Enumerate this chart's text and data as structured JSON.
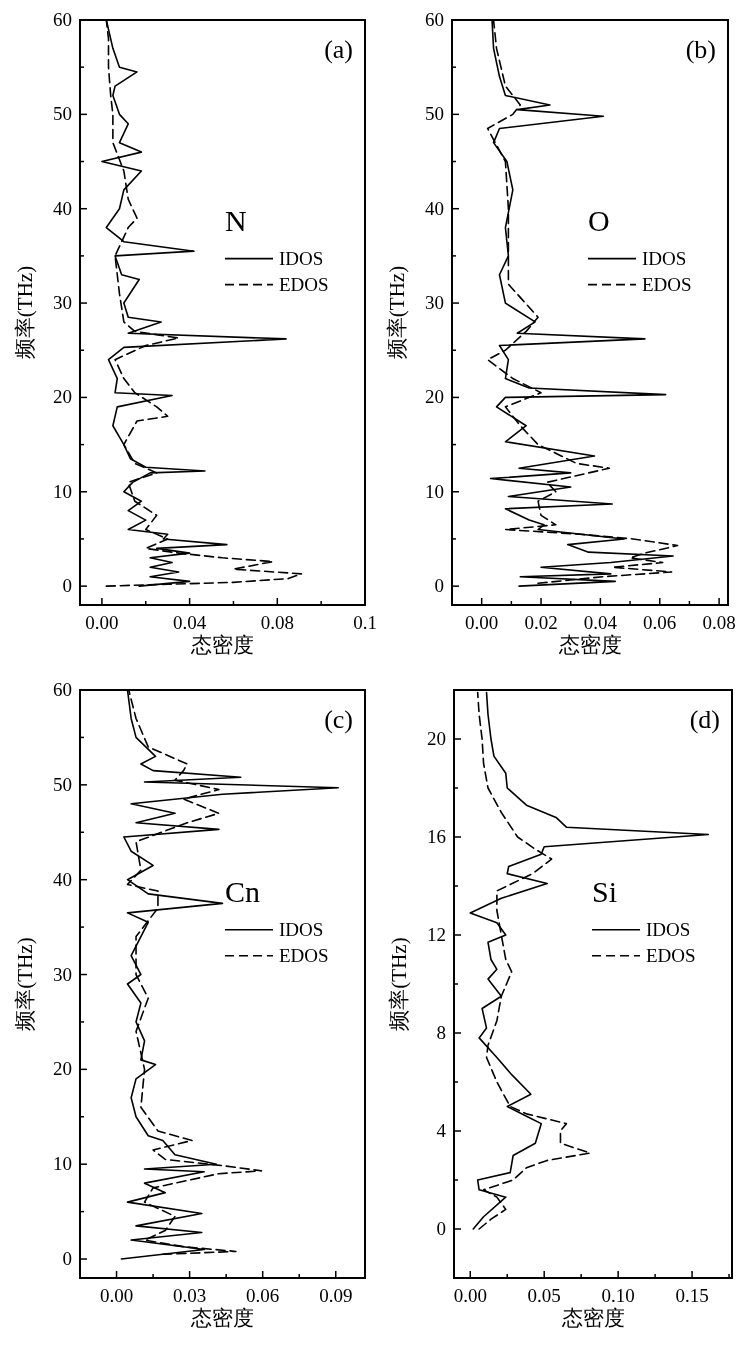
{
  "chart_data": [
    {
      "type": "line",
      "annotations": [
        "(a)"
      ],
      "legend_title": "N",
      "xlabel": "态密度",
      "ylabel": "频率(THz)",
      "legend": "right",
      "xlim": [
        -0.01,
        0.12
      ],
      "ylim": [
        -2,
        60
      ],
      "xticks": [
        {
          "value": 0,
          "label": "0.00"
        },
        {
          "value": 0.02,
          "label": null
        },
        {
          "value": 0.04,
          "label": "0.04"
        },
        {
          "value": 0.06,
          "label": null
        },
        {
          "value": 0.08,
          "label": "0.08"
        },
        {
          "value": 0.1,
          "label": null
        },
        {
          "value": 0.12,
          "label": "0.1"
        }
      ],
      "yticks": [
        0,
        {
          "value": 5,
          "label": null
        },
        10,
        {
          "value": 15,
          "label": null
        },
        20,
        {
          "value": 25,
          "label": null
        },
        30,
        {
          "value": 35,
          "label": null
        },
        40,
        {
          "value": 45,
          "label": null
        },
        50,
        {
          "value": 55,
          "label": null
        },
        60
      ],
      "series": [
        {
          "name": "IDOS",
          "color": "#000000",
          "line_style": "solid",
          "values": [
            0,
            0.5,
            1,
            1.5,
            2,
            2.5,
            3,
            3.5,
            4,
            4.4,
            5,
            5.5,
            6,
            7,
            8,
            9,
            10,
            11,
            12,
            12.2,
            12.6,
            13.5,
            15,
            17,
            19,
            20.2,
            20.5,
            22,
            24,
            25.3,
            26.2,
            26.8,
            28,
            28.5,
            30,
            32.5,
            33,
            35,
            35.5,
            36.5,
            38,
            40,
            42,
            44,
            45,
            46,
            47,
            49,
            50,
            52,
            53,
            54.5,
            55,
            57,
            60
          ],
          "x": [
            0.017,
            0.04,
            0.022,
            0.035,
            0.022,
            0.032,
            0.022,
            0.04,
            0.025,
            0.057,
            0.028,
            0.03,
            0.012,
            0.02,
            0.012,
            0.018,
            0.01,
            0.014,
            0.022,
            0.047,
            0.02,
            0.013,
            0.01,
            0.005,
            0.007,
            0.032,
            0.006,
            0.007,
            0.003,
            0.01,
            0.084,
            0.012,
            0.027,
            0.012,
            0.01,
            0.017,
            0.009,
            0.006,
            0.042,
            0.01,
            0.002,
            0.008,
            0.01,
            0.018,
            0.0,
            0.018,
            0.008,
            0.012,
            0.008,
            0.005,
            0.006,
            0.016,
            0.008,
            0.005,
            0.002
          ]
        },
        {
          "name": "EDOS",
          "color": "#000000",
          "line_style": "dashed",
          "values": [
            0,
            0.2,
            0.4,
            0.8,
            1.3,
            1.8,
            2.6,
            3.0,
            3.5,
            4,
            5,
            6,
            7.5,
            9,
            11,
            12,
            13,
            15,
            17.5,
            18,
            19,
            20.5,
            22,
            24,
            25.5,
            26.3,
            27,
            28,
            31,
            35,
            38,
            39,
            41,
            44,
            47,
            50,
            52,
            55,
            58,
            60
          ],
          "x": [
            0.002,
            0.03,
            0.06,
            0.085,
            0.091,
            0.06,
            0.078,
            0.055,
            0.035,
            0.02,
            0.03,
            0.02,
            0.025,
            0.015,
            0.012,
            0.025,
            0.015,
            0.01,
            0.016,
            0.03,
            0.025,
            0.015,
            0.01,
            0.006,
            0.02,
            0.035,
            0.015,
            0.01,
            0.008,
            0.006,
            0.012,
            0.016,
            0.012,
            0.01,
            0.005,
            0.005,
            0.004,
            0.003,
            0.003,
            0.002
          ]
        }
      ]
    },
    {
      "type": "line",
      "annotations": [
        "(b)"
      ],
      "legend_title": "O",
      "xlabel": "态密度",
      "ylabel": "频率(THz)",
      "legend": "right",
      "xlim": [
        -0.01,
        0.083
      ],
      "ylim": [
        -2,
        60
      ],
      "xticks": [
        {
          "value": 0,
          "label": "0.00"
        },
        {
          "value": 0.01,
          "label": null
        },
        {
          "value": 0.02,
          "label": "0.02"
        },
        {
          "value": 0.03,
          "label": null
        },
        {
          "value": 0.04,
          "label": "0.04"
        },
        {
          "value": 0.05,
          "label": null
        },
        {
          "value": 0.06,
          "label": "0.06"
        },
        {
          "value": 0.07,
          "label": null
        },
        {
          "value": 0.08,
          "label": "0.08"
        }
      ],
      "yticks": [
        0,
        {
          "value": 5,
          "label": null
        },
        10,
        {
          "value": 15,
          "label": null
        },
        20,
        {
          "value": 25,
          "label": null
        },
        30,
        {
          "value": 35,
          "label": null
        },
        40,
        {
          "value": 45,
          "label": null
        },
        50,
        {
          "value": 55,
          "label": null
        },
        60
      ],
      "series": [
        {
          "name": "IDOS",
          "color": "#000000",
          "line_style": "solid",
          "values": [
            0,
            0.5,
            1,
            1.3,
            2,
            2.5,
            3.2,
            3.6,
            4.4,
            5,
            6,
            6.5,
            7,
            8.2,
            8.7,
            9.5,
            10.5,
            11.4,
            12,
            12.5,
            13.8,
            15.3,
            17,
            19,
            20,
            20.3,
            21,
            22,
            24,
            25.5,
            26.2,
            26.8,
            28,
            30,
            33,
            35,
            38,
            42,
            45,
            47,
            48.5,
            49.8,
            50.5,
            51,
            52,
            54,
            57,
            60
          ],
          "x": [
            0.0126,
            0.045,
            0.013,
            0.0435,
            0.02,
            0.0435,
            0.0645,
            0.036,
            0.029,
            0.048,
            0.019,
            0.021,
            0.016,
            0.008,
            0.044,
            0.009,
            0.03,
            0.003,
            0.03,
            0.0126,
            0.038,
            0.008,
            0.015,
            0.005,
            0.008,
            0.062,
            0.016,
            0.008,
            0.009,
            0.006,
            0.055,
            0.012,
            0.018,
            0.008,
            0.006,
            0.009,
            0.008,
            0.0105,
            0.0085,
            0.004,
            0.006,
            0.041,
            0.012,
            0.023,
            0.008,
            0.006,
            0.004,
            0.0035
          ]
        },
        {
          "name": "EDOS",
          "color": "#000000",
          "line_style": "dashed",
          "values": [
            0.3,
            1,
            1.5,
            2,
            2.5,
            3,
            3.5,
            4.3,
            5,
            5.5,
            6,
            6.5,
            7.5,
            9,
            10,
            11,
            12.5,
            13,
            15,
            17,
            19,
            20.5,
            22,
            24,
            25,
            27,
            28.5,
            32,
            36,
            40,
            45,
            48.5,
            50,
            51,
            53,
            57,
            60
          ],
          "x": [
            0.019,
            0.041,
            0.064,
            0.044,
            0.061,
            0.05,
            0.055,
            0.066,
            0.051,
            0.033,
            0.008,
            0.025,
            0.02,
            0.019,
            0.025,
            0.022,
            0.043,
            0.032,
            0.019,
            0.013,
            0.008,
            0.02,
            0.0105,
            0.002,
            0.008,
            0.015,
            0.019,
            0.009,
            0.009,
            0.009,
            0.008,
            0.002,
            0.0105,
            0.013,
            0.008,
            0.005,
            0.004
          ]
        }
      ]
    },
    {
      "type": "line",
      "annotations": [
        "(c)"
      ],
      "legend_title": "Cn",
      "xlabel": "态密度",
      "ylabel": "频率(THz)",
      "legend": "right",
      "xlim": [
        -0.015,
        0.102
      ],
      "ylim": [
        -2,
        60
      ],
      "xticks": [
        {
          "value": 0,
          "label": "0.00"
        },
        {
          "value": 0.015,
          "label": null
        },
        {
          "value": 0.03,
          "label": "0.03"
        },
        {
          "value": 0.045,
          "label": null
        },
        {
          "value": 0.06,
          "label": "0.06"
        },
        {
          "value": 0.075,
          "label": null
        },
        {
          "value": 0.09,
          "label": "0.09"
        }
      ],
      "yticks": [
        0,
        {
          "value": 5,
          "label": null
        },
        10,
        {
          "value": 15,
          "label": null
        },
        20,
        {
          "value": 25,
          "label": null
        },
        30,
        {
          "value": 35,
          "label": null
        },
        40,
        {
          "value": 45,
          "label": null
        },
        50,
        {
          "value": 55,
          "label": null
        },
        60
      ],
      "series": [
        {
          "name": "IDOS",
          "color": "#000000",
          "line_style": "solid",
          "values": [
            0,
            1,
            2,
            2.8,
            3.5,
            4.8,
            6,
            7,
            8,
            9.2,
            9.5,
            10,
            11,
            12.5,
            13,
            15,
            17,
            19,
            20.5,
            21,
            23,
            25,
            27,
            29,
            30,
            32,
            35.5,
            36.5,
            37.5,
            38.5,
            40,
            41.5,
            43,
            44.5,
            45.3,
            46,
            47,
            48,
            49,
            49.7,
            50.3,
            50.8,
            51.5,
            52.2,
            53,
            55,
            57,
            60
          ],
          "x": [
            0.002,
            0.036,
            0.006,
            0.035,
            0.008,
            0.035,
            0.0045,
            0.02,
            0.0115,
            0.036,
            0.0115,
            0.041,
            0.024,
            0.019,
            0.013,
            0.008,
            0.006,
            0.008,
            0.016,
            0.01,
            0.0115,
            0.008,
            0.01,
            0.0045,
            0.01,
            0.006,
            0.013,
            0.0045,
            0.0435,
            0.013,
            0.0045,
            0.015,
            0.006,
            0.003,
            0.042,
            0.008,
            0.024,
            0.006,
            0.0435,
            0.091,
            0.0115,
            0.051,
            0.015,
            0.01,
            0.016,
            0.008,
            0.006,
            0.0045
          ]
        },
        {
          "name": "EDOS",
          "color": "#000000",
          "line_style": "dashed",
          "values": [
            0.5,
            0.8,
            1.3,
            2,
            3,
            4.5,
            6,
            7.5,
            9,
            9.3,
            9.8,
            10.5,
            11.5,
            12.5,
            13.5,
            16,
            20,
            24,
            27.5,
            30,
            34,
            37,
            38.8,
            39.5,
            41,
            44,
            46,
            47,
            48.5,
            49.5,
            50.5,
            51.5,
            52.2,
            54,
            57,
            60
          ],
          "x": [
            0.019,
            0.049,
            0.0275,
            0.0115,
            0.02,
            0.024,
            0.0115,
            0.015,
            0.042,
            0.0595,
            0.045,
            0.02,
            0.015,
            0.031,
            0.017,
            0.01,
            0.0115,
            0.008,
            0.013,
            0.008,
            0.008,
            0.017,
            0.017,
            0.0045,
            0.01,
            0.008,
            0.029,
            0.042,
            0.0275,
            0.042,
            0.024,
            0.0275,
            0.029,
            0.013,
            0.008,
            0.005
          ]
        }
      ]
    },
    {
      "type": "line",
      "annotations": [
        "(d)"
      ],
      "legend_title": "Si",
      "xlabel": "态密度",
      "ylabel": "频率(THz)",
      "legend": "right",
      "xlim": [
        -0.011,
        0.177
      ],
      "ylim": [
        -2,
        22
      ],
      "xticks": [
        {
          "value": 0,
          "label": "0.00"
        },
        {
          "value": 0.025,
          "label": null
        },
        {
          "value": 0.05,
          "label": "0.05"
        },
        {
          "value": 0.075,
          "label": null
        },
        {
          "value": 0.1,
          "label": "0.10"
        },
        {
          "value": 0.125,
          "label": null
        },
        {
          "value": 0.15,
          "label": "0.15"
        },
        {
          "value": 0.175,
          "label": null
        }
      ],
      "yticks": [
        0,
        {
          "value": 2,
          "label": null
        },
        4,
        {
          "value": 6,
          "label": null
        },
        8,
        {
          "value": 10,
          "label": null
        },
        12,
        {
          "value": 14,
          "label": null
        },
        16,
        {
          "value": 18,
          "label": null
        },
        20
      ],
      "series": [
        {
          "name": "IDOS",
          "color": "#000000",
          "line_style": "solid",
          "values": [
            0,
            0.5,
            1.3,
            1.6,
            2,
            2.3,
            3,
            3.5,
            4.3,
            4.6,
            5,
            5.5,
            6.3,
            7,
            7.8,
            8.2,
            9,
            9.5,
            10.2,
            10.6,
            11,
            11.7,
            12,
            12.5,
            12.9,
            13.5,
            14.1,
            14.5,
            14.8,
            15.3,
            15.6,
            16.1,
            16.4,
            16.8,
            17.3,
            18,
            18.6,
            19.3,
            20,
            21,
            21.9
          ],
          "x": [
            0.002,
            0.009,
            0.024,
            0.006,
            0.005,
            0.027,
            0.029,
            0.044,
            0.048,
            0.038,
            0.025,
            0.041,
            0.028,
            0.018,
            0.006,
            0.011,
            0.008,
            0.021,
            0.012,
            0.018,
            0.014,
            0.012,
            0.024,
            0.018,
            0.0,
            0.021,
            0.052,
            0.025,
            0.026,
            0.048,
            0.05,
            0.161,
            0.065,
            0.058,
            0.038,
            0.025,
            0.024,
            0.016,
            0.014,
            0.012,
            0.011
          ]
        },
        {
          "name": "EDOS",
          "color": "#000000",
          "line_style": "dashed",
          "values": [
            0,
            0.4,
            0.8,
            1.3,
            1.6,
            2,
            2.5,
            2.8,
            3.1,
            3.5,
            4,
            4.3,
            4.7,
            5,
            6,
            7,
            7.5,
            8.5,
            9.5,
            10.5,
            11,
            12,
            13,
            13.8,
            14.5,
            15.1,
            15.5,
            16,
            17,
            18,
            19,
            20,
            21,
            21.9
          ],
          "x": [
            0.006,
            0.014,
            0.024,
            0.018,
            0.009,
            0.029,
            0.038,
            0.052,
            0.081,
            0.061,
            0.061,
            0.065,
            0.038,
            0.027,
            0.018,
            0.011,
            0.012,
            0.018,
            0.021,
            0.028,
            0.024,
            0.021,
            0.018,
            0.018,
            0.042,
            0.055,
            0.044,
            0.032,
            0.021,
            0.012,
            0.009,
            0.008,
            0.006,
            0.005
          ]
        }
      ]
    }
  ]
}
